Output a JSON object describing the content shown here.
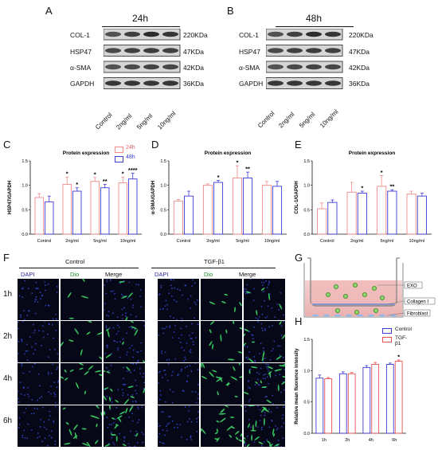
{
  "panels": {
    "A": "A",
    "B": "B",
    "C": "C",
    "D": "D",
    "E": "E",
    "F": "F",
    "G": "G",
    "H": "H"
  },
  "blots": {
    "A": {
      "time": "24h",
      "rows": [
        "COL-1",
        "HSP47",
        "α-SMA",
        "GAPDH"
      ],
      "kda": [
        "220KDa",
        "47KDa",
        "42KDa",
        "36KDa"
      ],
      "lanes": [
        "Control",
        "2ng/ml",
        "5ng/ml",
        "10ng/ml"
      ]
    },
    "B": {
      "time": "48h",
      "rows": [
        "COL-1",
        "HSP47",
        "α-SMA",
        "GAPDH"
      ],
      "kda": [
        "220KDa",
        "47KDa",
        "42KDa",
        "36KDa"
      ],
      "lanes": [
        "Control",
        "2ng/ml",
        "5ng/ml",
        "10ng/ml"
      ]
    }
  },
  "legend_24h": "24h",
  "legend_48h": "48h",
  "colors": {
    "s24": "#f08a8a",
    "s48": "#3b3bd6",
    "control": "#3b3bd6",
    "tgf": "#e85050"
  },
  "chart_data": [
    {
      "id": "C",
      "type": "bar",
      "title": "Protein expression",
      "ylabel": "HSP47/GAPDH",
      "ylim": [
        0,
        1.5
      ],
      "yticks": [
        "0.0",
        "0.5",
        "1.0",
        "1.5"
      ],
      "categories": [
        "Control",
        "2ng/ml",
        "5ng/ml",
        "10ng/ml"
      ],
      "series": [
        {
          "name": "24h",
          "values": [
            0.75,
            1.02,
            1.08,
            1.05
          ],
          "errors": [
            0.08,
            0.15,
            0.08,
            0.12
          ]
        },
        {
          "name": "48h",
          "values": [
            0.66,
            0.88,
            0.95,
            1.13
          ],
          "errors": [
            0.12,
            0.07,
            0.07,
            0.12
          ]
        }
      ],
      "significance": [
        [
          "",
          "*",
          "*",
          "*"
        ],
        [
          "",
          "*",
          "**",
          "****"
        ]
      ]
    },
    {
      "id": "D",
      "type": "bar",
      "title": "Protein expression",
      "ylabel": "α-SMA/GAPDH",
      "ylim": [
        0,
        1.5
      ],
      "yticks": [
        "0.0",
        "0.5",
        "1.0",
        "1.5"
      ],
      "categories": [
        "Control",
        "2ng/ml",
        "5ng/ml",
        "10ng/ml"
      ],
      "series": [
        {
          "name": "24h",
          "values": [
            0.68,
            1.0,
            1.15,
            1.0
          ],
          "errors": [
            0.03,
            0.03,
            0.25,
            0.08
          ]
        },
        {
          "name": "48h",
          "values": [
            0.78,
            1.06,
            1.15,
            0.98
          ],
          "errors": [
            0.1,
            0.04,
            0.12,
            0.1
          ]
        }
      ],
      "significance": [
        [
          "",
          "",
          "*",
          ""
        ],
        [
          "",
          "*",
          "**",
          ""
        ]
      ]
    },
    {
      "id": "E",
      "type": "bar",
      "title": "Protein expression",
      "ylabel": "COL-1/GAPDH",
      "ylim": [
        0,
        1.5
      ],
      "yticks": [
        "0.0",
        "0.5",
        "1.0",
        "1.5"
      ],
      "categories": [
        "Control",
        "2ng/ml",
        "5ng/ml",
        "10ng/ml"
      ],
      "series": [
        {
          "name": "24h",
          "values": [
            0.52,
            0.86,
            0.98,
            0.82
          ],
          "errors": [
            0.12,
            0.2,
            0.22,
            0.06
          ]
        },
        {
          "name": "48h",
          "values": [
            0.65,
            0.84,
            0.88,
            0.78
          ],
          "errors": [
            0.05,
            0.04,
            0.03,
            0.06
          ]
        }
      ],
      "significance": [
        [
          "",
          "",
          "*",
          ""
        ],
        [
          "",
          "*",
          "**",
          ""
        ]
      ]
    },
    {
      "id": "H",
      "type": "bar",
      "title": "",
      "ylabel": "Relative mean fluorence intensity",
      "ylim": [
        0,
        1.5
      ],
      "yticks": [
        "0.0",
        "0.5",
        "1.0",
        "1.5"
      ],
      "categories": [
        "1h",
        "2h",
        "4h",
        "6h"
      ],
      "series": [
        {
          "name": "Control",
          "values": [
            0.88,
            0.95,
            1.05,
            1.1
          ],
          "errors": [
            0.05,
            0.03,
            0.03,
            0.02
          ]
        },
        {
          "name": "TGF-β1",
          "values": [
            0.87,
            0.95,
            1.1,
            1.15
          ],
          "errors": [
            0.02,
            0.02,
            0.03,
            0.02
          ]
        }
      ],
      "significance": [
        [
          "",
          "",
          "",
          ""
        ],
        [
          "",
          "",
          "",
          "*"
        ]
      ]
    }
  ],
  "microscopy": {
    "control_header": "Control",
    "tgf_header": "TGF-β1",
    "columns": [
      "DAPI",
      "Dio",
      "Merge"
    ],
    "times": [
      "1h",
      "2h",
      "4h",
      "6h"
    ]
  },
  "diagram": {
    "exo": "EXO",
    "collagen": "Collagen Ⅰ",
    "fibroblast": "Fibroblast"
  }
}
